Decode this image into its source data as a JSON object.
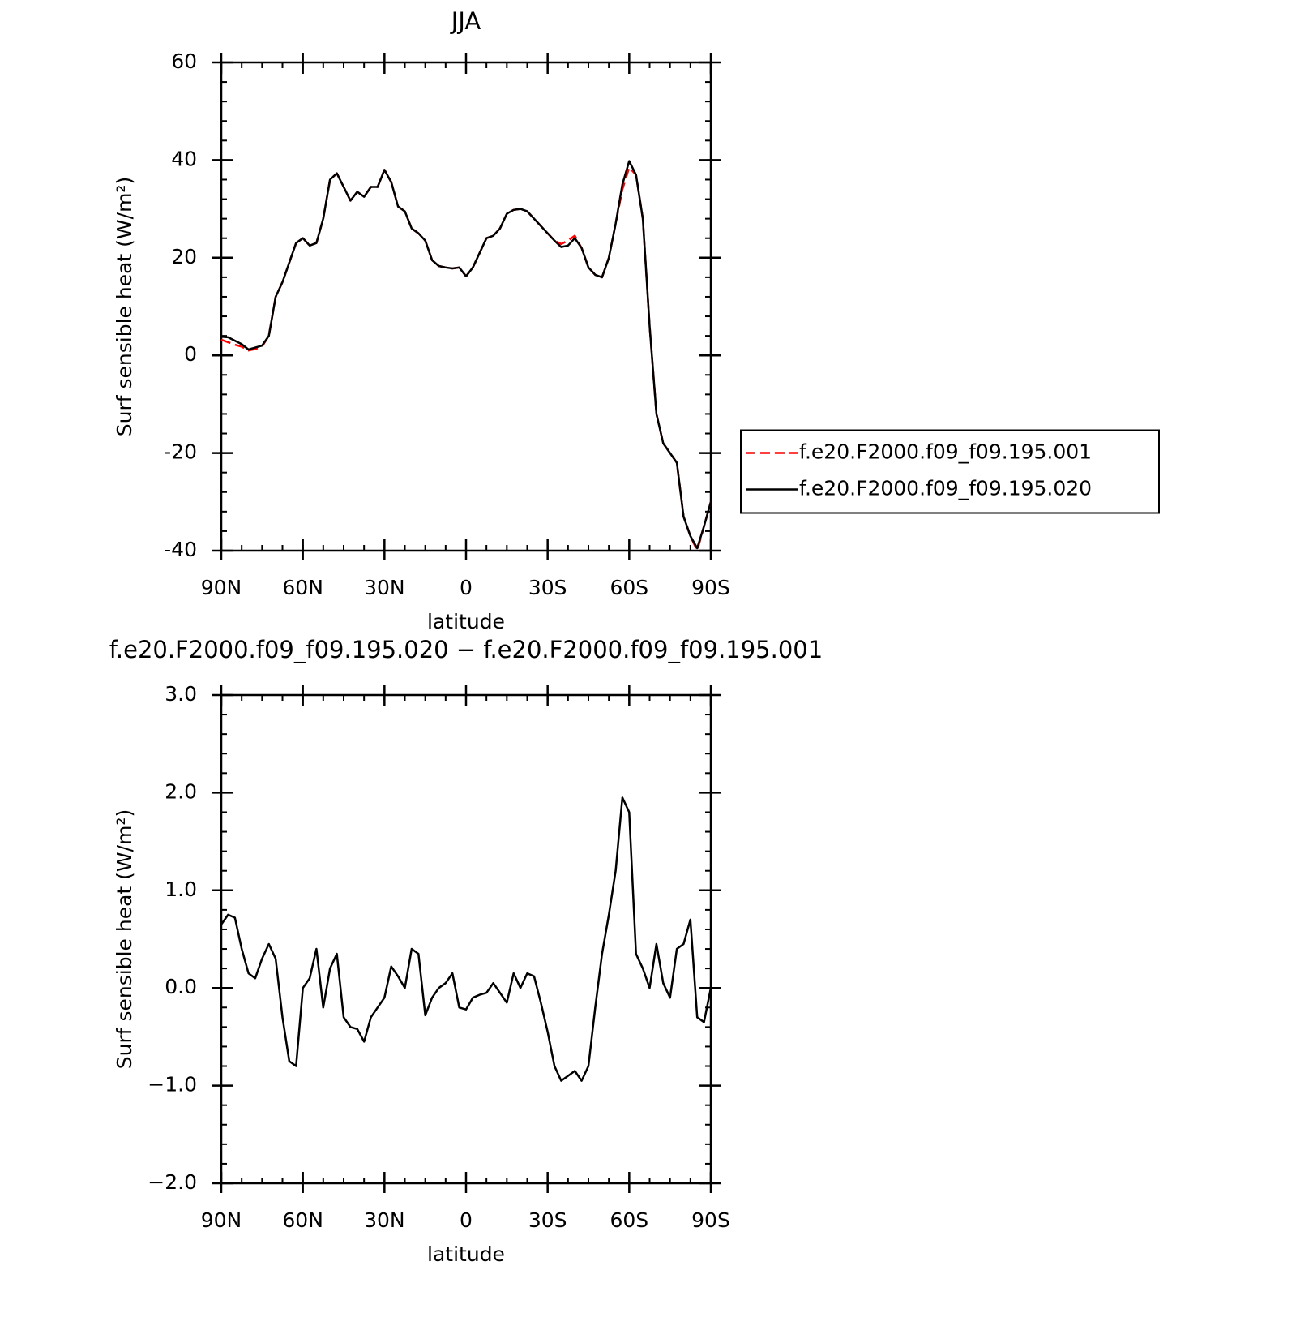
{
  "chart_data": [
    {
      "type": "line",
      "title": "JJA",
      "xlabel": "latitude",
      "ylabel": "Surf sensible heat (W/m²)",
      "xlim": [
        90,
        -90
      ],
      "ylim": [
        -40,
        60
      ],
      "xticks": [
        {
          "value": 90,
          "label": "90N"
        },
        {
          "value": 60,
          "label": "60N"
        },
        {
          "value": 30,
          "label": "30N"
        },
        0,
        {
          "value": -30,
          "label": "30S"
        },
        {
          "value": -60,
          "label": "60S"
        },
        {
          "value": -90,
          "label": "90S"
        }
      ],
      "yticks": [
        -40,
        -20,
        0,
        20,
        40,
        60
      ],
      "legend": "right",
      "x": [
        90,
        87.5,
        85,
        82.5,
        80,
        77.5,
        75,
        72.5,
        70,
        67.5,
        65,
        62.5,
        60,
        57.5,
        55,
        52.5,
        50,
        47.5,
        45,
        42.5,
        40,
        37.5,
        35,
        32.5,
        30,
        27.5,
        25,
        22.5,
        20,
        17.5,
        15,
        12.5,
        10,
        7.5,
        5,
        2.5,
        0,
        -2.5,
        -5,
        -7.5,
        -10,
        -12.5,
        -15,
        -17.5,
        -20,
        -22.5,
        -25,
        -27.5,
        -30,
        -32.5,
        -35,
        -37.5,
        -40,
        -42.5,
        -45,
        -47.5,
        -50,
        -52.5,
        -55,
        -57.5,
        -60,
        -62.5,
        -65,
        -67.5,
        -70,
        -72.5,
        -75,
        -77.5,
        -80,
        -82.5,
        -85,
        -87.5,
        -90
      ],
      "series": [
        {
          "name": "f.e20.F2000.f09_f09.195.001",
          "color": "#ff0000",
          "dash": true,
          "values": [
            3.2,
            2.7,
            2.2,
            1.8,
            1.0,
            1.3,
            1.8,
            4,
            12,
            15,
            19,
            23,
            24,
            22.5,
            23,
            28,
            36,
            37.3,
            34.5,
            31.7,
            33.5,
            32.5,
            34.5,
            34.5,
            38,
            35.5,
            30.5,
            29.5,
            26,
            25,
            23.5,
            19.5,
            18.3,
            18,
            17.8,
            18,
            16.2,
            18,
            21,
            24,
            24.5,
            26,
            29,
            29.8,
            30,
            29.5,
            28,
            26.5,
            25,
            23.5,
            22.8,
            23.5,
            24.5,
            22,
            18,
            16.5,
            16,
            20,
            27,
            34,
            38.5,
            37,
            28,
            6,
            -12,
            -18,
            -20,
            -22,
            -33,
            -37,
            -40,
            -35,
            -30
          ]
        },
        {
          "name": "f.e20.F2000.f09_f09.195.020",
          "color": "#000000",
          "dash": false,
          "values": [
            3.8,
            3.7,
            3.0,
            2.3,
            1.2,
            1.6,
            2.0,
            4,
            12,
            15,
            19,
            23,
            24,
            22.5,
            23,
            28,
            36,
            37.3,
            34.5,
            31.7,
            33.5,
            32.5,
            34.5,
            34.5,
            38,
            35.5,
            30.5,
            29.5,
            26,
            25,
            23.5,
            19.5,
            18.3,
            18,
            17.8,
            18,
            16.2,
            18,
            21,
            24,
            24.5,
            26,
            29,
            29.8,
            30,
            29.5,
            28,
            26.5,
            25,
            23.5,
            22.2,
            22.5,
            24,
            22,
            18,
            16.5,
            16,
            20,
            27,
            35,
            39.8,
            37,
            28,
            6,
            -12,
            -18,
            -20,
            -22,
            -33,
            -37,
            -39.5,
            -35,
            -30
          ]
        }
      ]
    },
    {
      "type": "line",
      "title": "f.e20.F2000.f09_f09.195.020 − f.e20.F2000.f09_f09.195.001",
      "xlabel": "latitude",
      "ylabel": "Surf sensible heat (W/m²)",
      "xlim": [
        90,
        -90
      ],
      "ylim": [
        -2,
        3
      ],
      "xticks": [
        {
          "value": 90,
          "label": "90N"
        },
        {
          "value": 60,
          "label": "60N"
        },
        {
          "value": 30,
          "label": "30N"
        },
        0,
        {
          "value": -30,
          "label": "30S"
        },
        {
          "value": -60,
          "label": "60S"
        },
        {
          "value": -90,
          "label": "90S"
        }
      ],
      "yticks": [
        {
          "value": -2,
          "label": "−2.0"
        },
        {
          "value": -1,
          "label": "−1.0"
        },
        {
          "value": 0,
          "label": "0.0"
        },
        {
          "value": 1,
          "label": "1.0"
        },
        {
          "value": 2,
          "label": "2.0"
        },
        {
          "value": 3,
          "label": "3.0"
        }
      ],
      "x": [
        90,
        87.5,
        85,
        82.5,
        80,
        77.5,
        75,
        72.5,
        70,
        67.5,
        65,
        62.5,
        60,
        57.5,
        55,
        52.5,
        50,
        47.5,
        45,
        42.5,
        40,
        37.5,
        35,
        32.5,
        30,
        27.5,
        25,
        22.5,
        20,
        17.5,
        15,
        12.5,
        10,
        7.5,
        5,
        2.5,
        0,
        -2.5,
        -5,
        -7.5,
        -10,
        -12.5,
        -15,
        -17.5,
        -20,
        -22.5,
        -25,
        -27.5,
        -30,
        -32.5,
        -35,
        -37.5,
        -40,
        -42.5,
        -45,
        -47.5,
        -50,
        -52.5,
        -55,
        -57.5,
        -60,
        -62.5,
        -65,
        -67.5,
        -70,
        -72.5,
        -75,
        -77.5,
        -80,
        -82.5,
        -85,
        -87.5,
        -90
      ],
      "series": [
        {
          "color": "#000000",
          "dash": false,
          "values": [
            0.65,
            0.75,
            0.72,
            0.4,
            0.15,
            0.1,
            0.3,
            0.45,
            0.3,
            -0.3,
            -0.75,
            -0.8,
            0.0,
            0.1,
            0.4,
            -0.2,
            0.2,
            0.35,
            -0.3,
            -0.4,
            -0.42,
            -0.55,
            -0.3,
            -0.2,
            -0.1,
            0.22,
            0.12,
            0.0,
            0.4,
            0.35,
            -0.28,
            -0.1,
            0.0,
            0.05,
            0.15,
            -0.2,
            -0.22,
            -0.1,
            -0.07,
            -0.05,
            0.05,
            -0.05,
            -0.15,
            0.15,
            0.0,
            0.15,
            0.12,
            -0.15,
            -0.45,
            -0.8,
            -0.95,
            -0.9,
            -0.85,
            -0.95,
            -0.8,
            -0.2,
            0.35,
            0.75,
            1.2,
            1.95,
            1.8,
            0.35,
            0.2,
            0.0,
            0.45,
            0.05,
            -0.1,
            0.4,
            0.45,
            0.7,
            -0.3,
            -0.35,
            0.0
          ]
        }
      ]
    }
  ]
}
